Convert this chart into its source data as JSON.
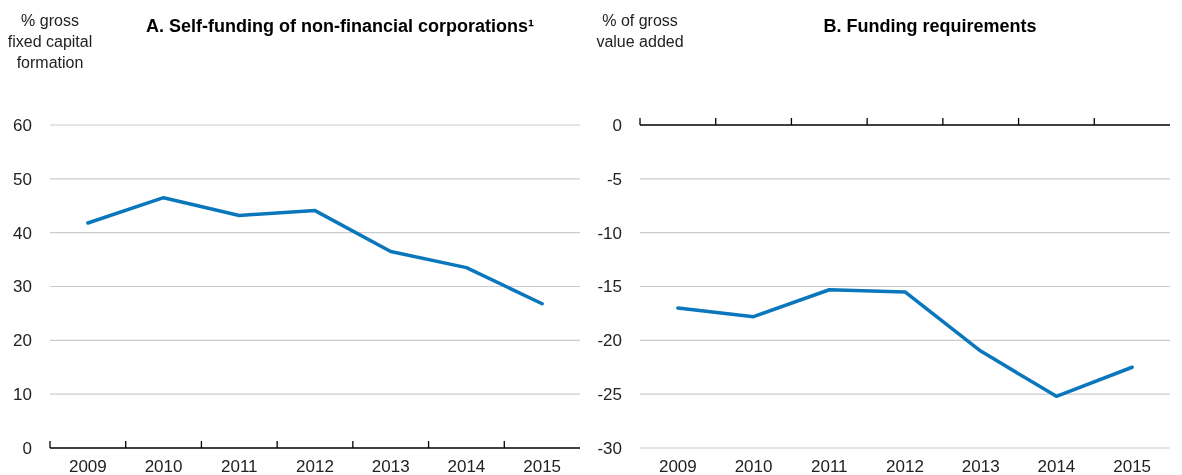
{
  "chart_data": [
    {
      "type": "line",
      "title": "A. Self-funding of non-financial corporations¹",
      "ylabel": "% gross fixed capital formation",
      "categories": [
        "2009",
        "2010",
        "2011",
        "2012",
        "2013",
        "2014",
        "2015"
      ],
      "series": [
        {
          "color": "#0a77bd",
          "values": [
            41.8,
            46.5,
            43.2,
            44.1,
            36.5,
            33.5,
            26.8
          ]
        }
      ],
      "ylim": [
        0,
        60
      ],
      "yticks": [
        0,
        10,
        20,
        30,
        40,
        50,
        60
      ],
      "grid": "y"
    },
    {
      "type": "line",
      "title": "B. Funding requirements",
      "ylabel": "% of gross value added",
      "categories": [
        "2009",
        "2010",
        "2011",
        "2012",
        "2013",
        "2014",
        "2015"
      ],
      "series": [
        {
          "color": "#0a77bd",
          "values": [
            -17,
            -17.8,
            -15.3,
            -15.5,
            -21,
            -25.2,
            -22.5
          ]
        }
      ],
      "ylim": [
        -30,
        0
      ],
      "yticks": [
        -30,
        -25,
        -20,
        -15,
        -10,
        -5,
        0
      ],
      "grid": "y"
    }
  ]
}
